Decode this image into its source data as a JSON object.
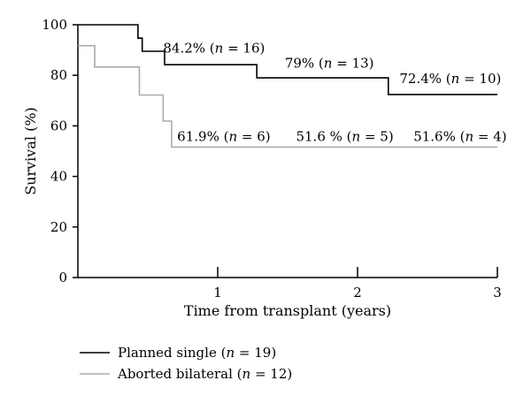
{
  "chart_data": {
    "type": "line",
    "subtype": "step",
    "xlabel": "Time from transplant (years)",
    "ylabel": "Survival (%)",
    "xlim": [
      0,
      3
    ],
    "ylim": [
      0,
      100
    ],
    "x_ticks": [
      "1",
      "2",
      "3"
    ],
    "y_ticks": [
      "0",
      "20",
      "40",
      "60",
      "80",
      "100"
    ],
    "grid": false,
    "legend_position": "bottom-left",
    "series": [
      {
        "name": "Planned single (n = 19)",
        "color": "#000000",
        "points": [
          [
            0,
            100
          ],
          [
            0.43,
            100
          ],
          [
            0.43,
            94.7
          ],
          [
            0.46,
            94.7
          ],
          [
            0.46,
            89.5
          ],
          [
            0.62,
            89.5
          ],
          [
            0.62,
            84.2
          ],
          [
            1.28,
            84.2
          ],
          [
            1.28,
            79
          ],
          [
            2.22,
            79
          ],
          [
            2.22,
            72.4
          ],
          [
            3.0,
            72.4
          ]
        ]
      },
      {
        "name": "Aborted bilateral (n = 12)",
        "color": "#aaaaaa",
        "points": [
          [
            0,
            91.7
          ],
          [
            0.12,
            91.7
          ],
          [
            0.12,
            83.3
          ],
          [
            0.44,
            83.3
          ],
          [
            0.44,
            72.2
          ],
          [
            0.61,
            72.2
          ],
          [
            0.61,
            61.9
          ],
          [
            0.67,
            61.9
          ],
          [
            0.67,
            51.6
          ],
          [
            3.0,
            51.6
          ]
        ]
      }
    ],
    "annotations": [
      {
        "text": "84.2% (n = 16)",
        "x": 0.61,
        "y": 89
      },
      {
        "text": "79% (n = 13)",
        "x": 1.48,
        "y": 83
      },
      {
        "text": "72.4% (n = 10)",
        "x": 2.3,
        "y": 77
      },
      {
        "text": "61.9% (n = 6)",
        "x": 0.71,
        "y": 54
      },
      {
        "text": "51.6 % (n = 5)",
        "x": 1.56,
        "y": 54
      },
      {
        "text": "51.6% (n = 4)",
        "x": 2.4,
        "y": 54
      }
    ]
  },
  "legend": [
    {
      "label": "Planned single (n = 19)",
      "color": "#000000"
    },
    {
      "label": "Aborted bilateral (n = 12)",
      "color": "#aaaaaa"
    }
  ]
}
